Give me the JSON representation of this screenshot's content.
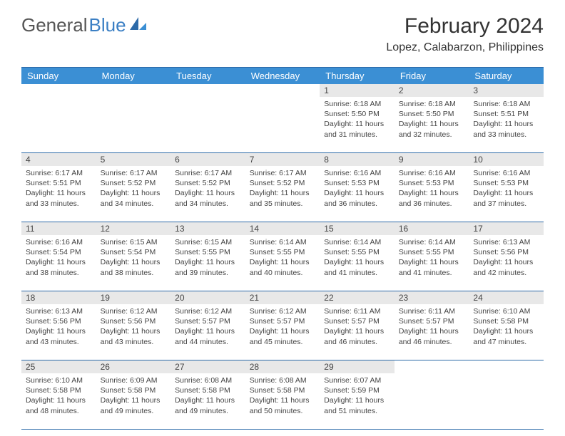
{
  "logo": {
    "text1": "General",
    "text2": "Blue"
  },
  "title": "February 2024",
  "location": "Lopez, Calabarzon, Philippines",
  "colors": {
    "header_bg": "#3b8fd4",
    "header_text": "#ffffff",
    "border": "#2c6aa8",
    "daynum_bg": "#e8e8e8",
    "text": "#444444",
    "logo_gray": "#666666",
    "logo_blue": "#3b7fc4"
  },
  "day_names": [
    "Sunday",
    "Monday",
    "Tuesday",
    "Wednesday",
    "Thursday",
    "Friday",
    "Saturday"
  ],
  "weeks": [
    {
      "nums": [
        "",
        "",
        "",
        "",
        "1",
        "2",
        "3"
      ],
      "cells": [
        null,
        null,
        null,
        null,
        {
          "sunrise": "Sunrise: 6:18 AM",
          "sunset": "Sunset: 5:50 PM",
          "daylight": "Daylight: 11 hours and 31 minutes."
        },
        {
          "sunrise": "Sunrise: 6:18 AM",
          "sunset": "Sunset: 5:50 PM",
          "daylight": "Daylight: 11 hours and 32 minutes."
        },
        {
          "sunrise": "Sunrise: 6:18 AM",
          "sunset": "Sunset: 5:51 PM",
          "daylight": "Daylight: 11 hours and 33 minutes."
        }
      ]
    },
    {
      "nums": [
        "4",
        "5",
        "6",
        "7",
        "8",
        "9",
        "10"
      ],
      "cells": [
        {
          "sunrise": "Sunrise: 6:17 AM",
          "sunset": "Sunset: 5:51 PM",
          "daylight": "Daylight: 11 hours and 33 minutes."
        },
        {
          "sunrise": "Sunrise: 6:17 AM",
          "sunset": "Sunset: 5:52 PM",
          "daylight": "Daylight: 11 hours and 34 minutes."
        },
        {
          "sunrise": "Sunrise: 6:17 AM",
          "sunset": "Sunset: 5:52 PM",
          "daylight": "Daylight: 11 hours and 34 minutes."
        },
        {
          "sunrise": "Sunrise: 6:17 AM",
          "sunset": "Sunset: 5:52 PM",
          "daylight": "Daylight: 11 hours and 35 minutes."
        },
        {
          "sunrise": "Sunrise: 6:16 AM",
          "sunset": "Sunset: 5:53 PM",
          "daylight": "Daylight: 11 hours and 36 minutes."
        },
        {
          "sunrise": "Sunrise: 6:16 AM",
          "sunset": "Sunset: 5:53 PM",
          "daylight": "Daylight: 11 hours and 36 minutes."
        },
        {
          "sunrise": "Sunrise: 6:16 AM",
          "sunset": "Sunset: 5:53 PM",
          "daylight": "Daylight: 11 hours and 37 minutes."
        }
      ]
    },
    {
      "nums": [
        "11",
        "12",
        "13",
        "14",
        "15",
        "16",
        "17"
      ],
      "cells": [
        {
          "sunrise": "Sunrise: 6:16 AM",
          "sunset": "Sunset: 5:54 PM",
          "daylight": "Daylight: 11 hours and 38 minutes."
        },
        {
          "sunrise": "Sunrise: 6:15 AM",
          "sunset": "Sunset: 5:54 PM",
          "daylight": "Daylight: 11 hours and 38 minutes."
        },
        {
          "sunrise": "Sunrise: 6:15 AM",
          "sunset": "Sunset: 5:55 PM",
          "daylight": "Daylight: 11 hours and 39 minutes."
        },
        {
          "sunrise": "Sunrise: 6:14 AM",
          "sunset": "Sunset: 5:55 PM",
          "daylight": "Daylight: 11 hours and 40 minutes."
        },
        {
          "sunrise": "Sunrise: 6:14 AM",
          "sunset": "Sunset: 5:55 PM",
          "daylight": "Daylight: 11 hours and 41 minutes."
        },
        {
          "sunrise": "Sunrise: 6:14 AM",
          "sunset": "Sunset: 5:55 PM",
          "daylight": "Daylight: 11 hours and 41 minutes."
        },
        {
          "sunrise": "Sunrise: 6:13 AM",
          "sunset": "Sunset: 5:56 PM",
          "daylight": "Daylight: 11 hours and 42 minutes."
        }
      ]
    },
    {
      "nums": [
        "18",
        "19",
        "20",
        "21",
        "22",
        "23",
        "24"
      ],
      "cells": [
        {
          "sunrise": "Sunrise: 6:13 AM",
          "sunset": "Sunset: 5:56 PM",
          "daylight": "Daylight: 11 hours and 43 minutes."
        },
        {
          "sunrise": "Sunrise: 6:12 AM",
          "sunset": "Sunset: 5:56 PM",
          "daylight": "Daylight: 11 hours and 43 minutes."
        },
        {
          "sunrise": "Sunrise: 6:12 AM",
          "sunset": "Sunset: 5:57 PM",
          "daylight": "Daylight: 11 hours and 44 minutes."
        },
        {
          "sunrise": "Sunrise: 6:12 AM",
          "sunset": "Sunset: 5:57 PM",
          "daylight": "Daylight: 11 hours and 45 minutes."
        },
        {
          "sunrise": "Sunrise: 6:11 AM",
          "sunset": "Sunset: 5:57 PM",
          "daylight": "Daylight: 11 hours and 46 minutes."
        },
        {
          "sunrise": "Sunrise: 6:11 AM",
          "sunset": "Sunset: 5:57 PM",
          "daylight": "Daylight: 11 hours and 46 minutes."
        },
        {
          "sunrise": "Sunrise: 6:10 AM",
          "sunset": "Sunset: 5:58 PM",
          "daylight": "Daylight: 11 hours and 47 minutes."
        }
      ]
    },
    {
      "nums": [
        "25",
        "26",
        "27",
        "28",
        "29",
        "",
        ""
      ],
      "cells": [
        {
          "sunrise": "Sunrise: 6:10 AM",
          "sunset": "Sunset: 5:58 PM",
          "daylight": "Daylight: 11 hours and 48 minutes."
        },
        {
          "sunrise": "Sunrise: 6:09 AM",
          "sunset": "Sunset: 5:58 PM",
          "daylight": "Daylight: 11 hours and 49 minutes."
        },
        {
          "sunrise": "Sunrise: 6:08 AM",
          "sunset": "Sunset: 5:58 PM",
          "daylight": "Daylight: 11 hours and 49 minutes."
        },
        {
          "sunrise": "Sunrise: 6:08 AM",
          "sunset": "Sunset: 5:58 PM",
          "daylight": "Daylight: 11 hours and 50 minutes."
        },
        {
          "sunrise": "Sunrise: 6:07 AM",
          "sunset": "Sunset: 5:59 PM",
          "daylight": "Daylight: 11 hours and 51 minutes."
        },
        null,
        null
      ]
    }
  ]
}
